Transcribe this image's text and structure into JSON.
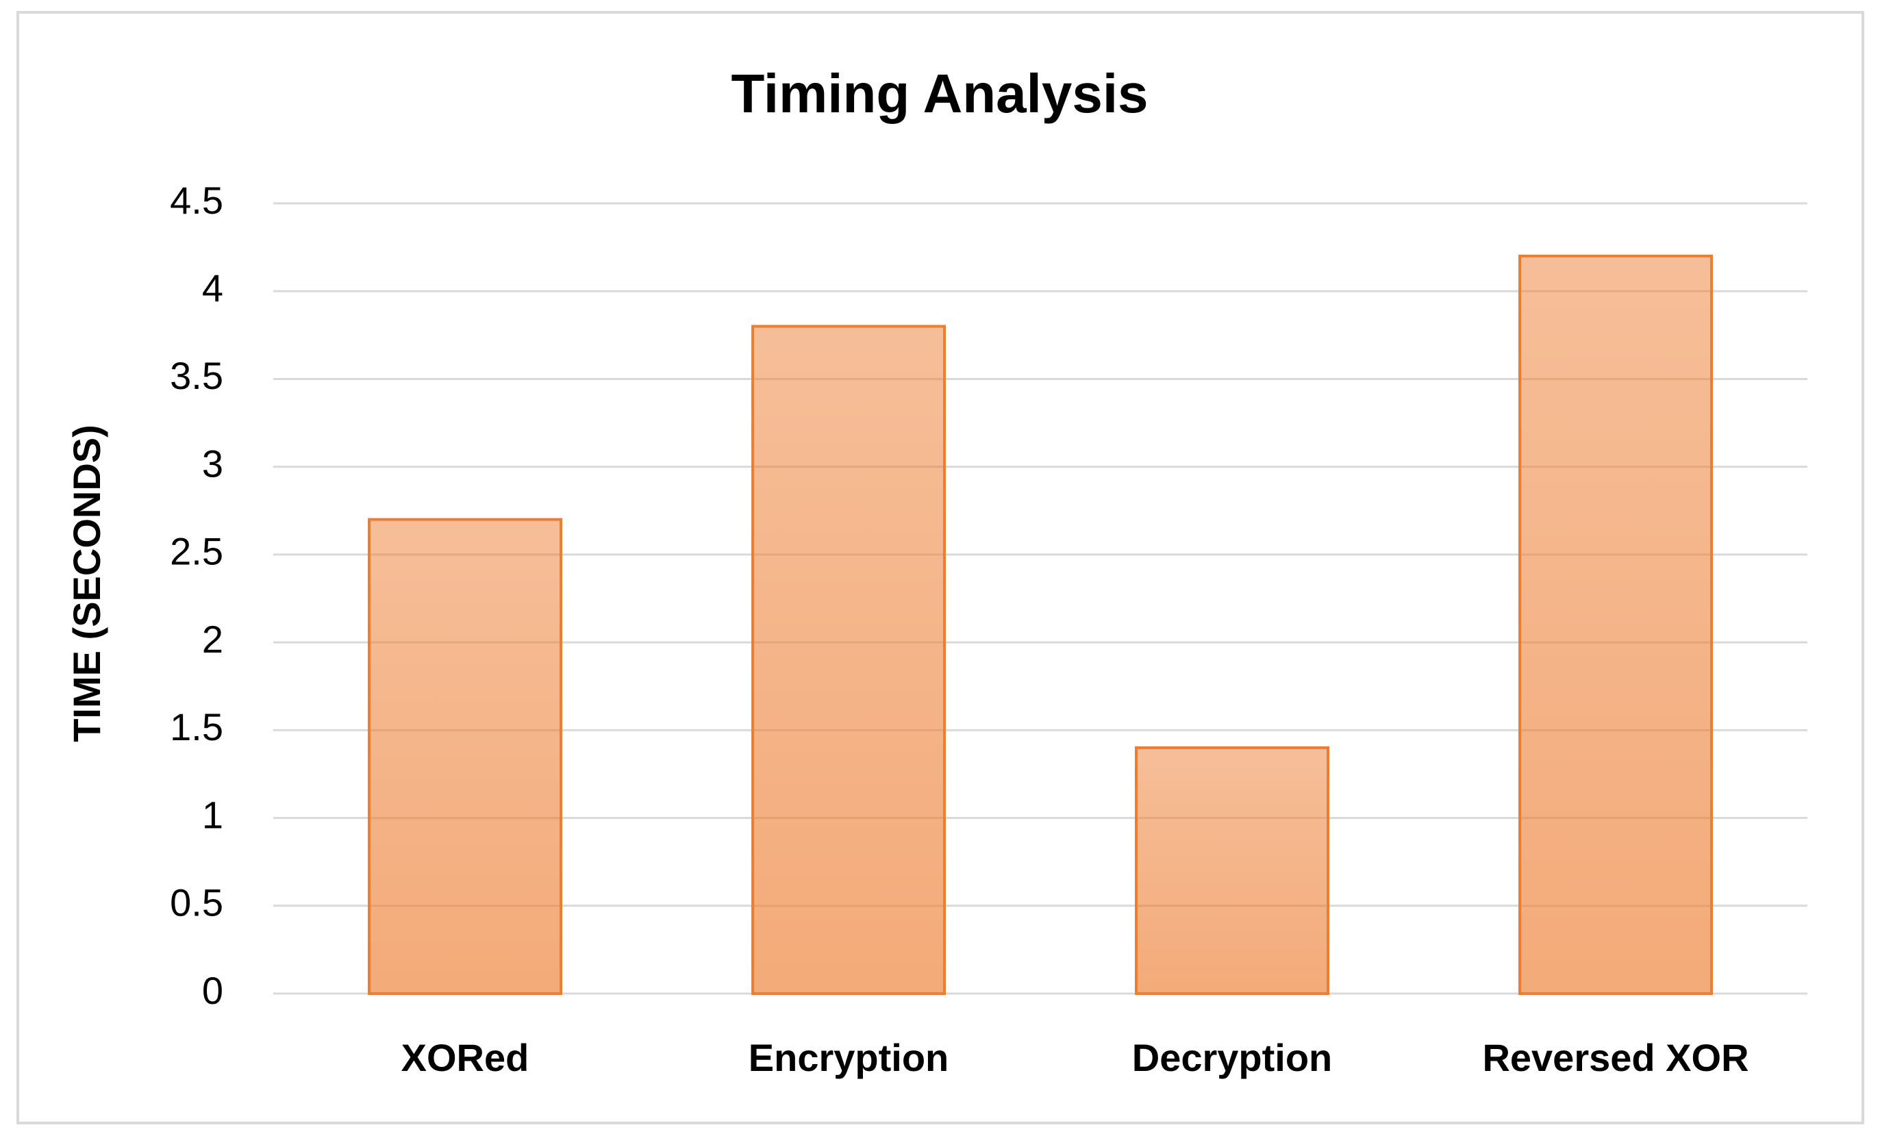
{
  "chart_data": {
    "type": "bar",
    "title": "Timing Analysis",
    "y_label": "TIME (SECONDS)",
    "categories": [
      "XORed",
      "Encryption",
      "Decryption",
      "Reversed XOR"
    ],
    "values": [
      2.7,
      3.8,
      1.4,
      4.2
    ],
    "color": "#ed7d31",
    "ylim": [
      0,
      4.5
    ],
    "yticks": [
      0,
      0.5,
      1,
      1.5,
      2,
      2.5,
      3,
      3.5,
      4,
      4.5
    ],
    "grid": true
  }
}
